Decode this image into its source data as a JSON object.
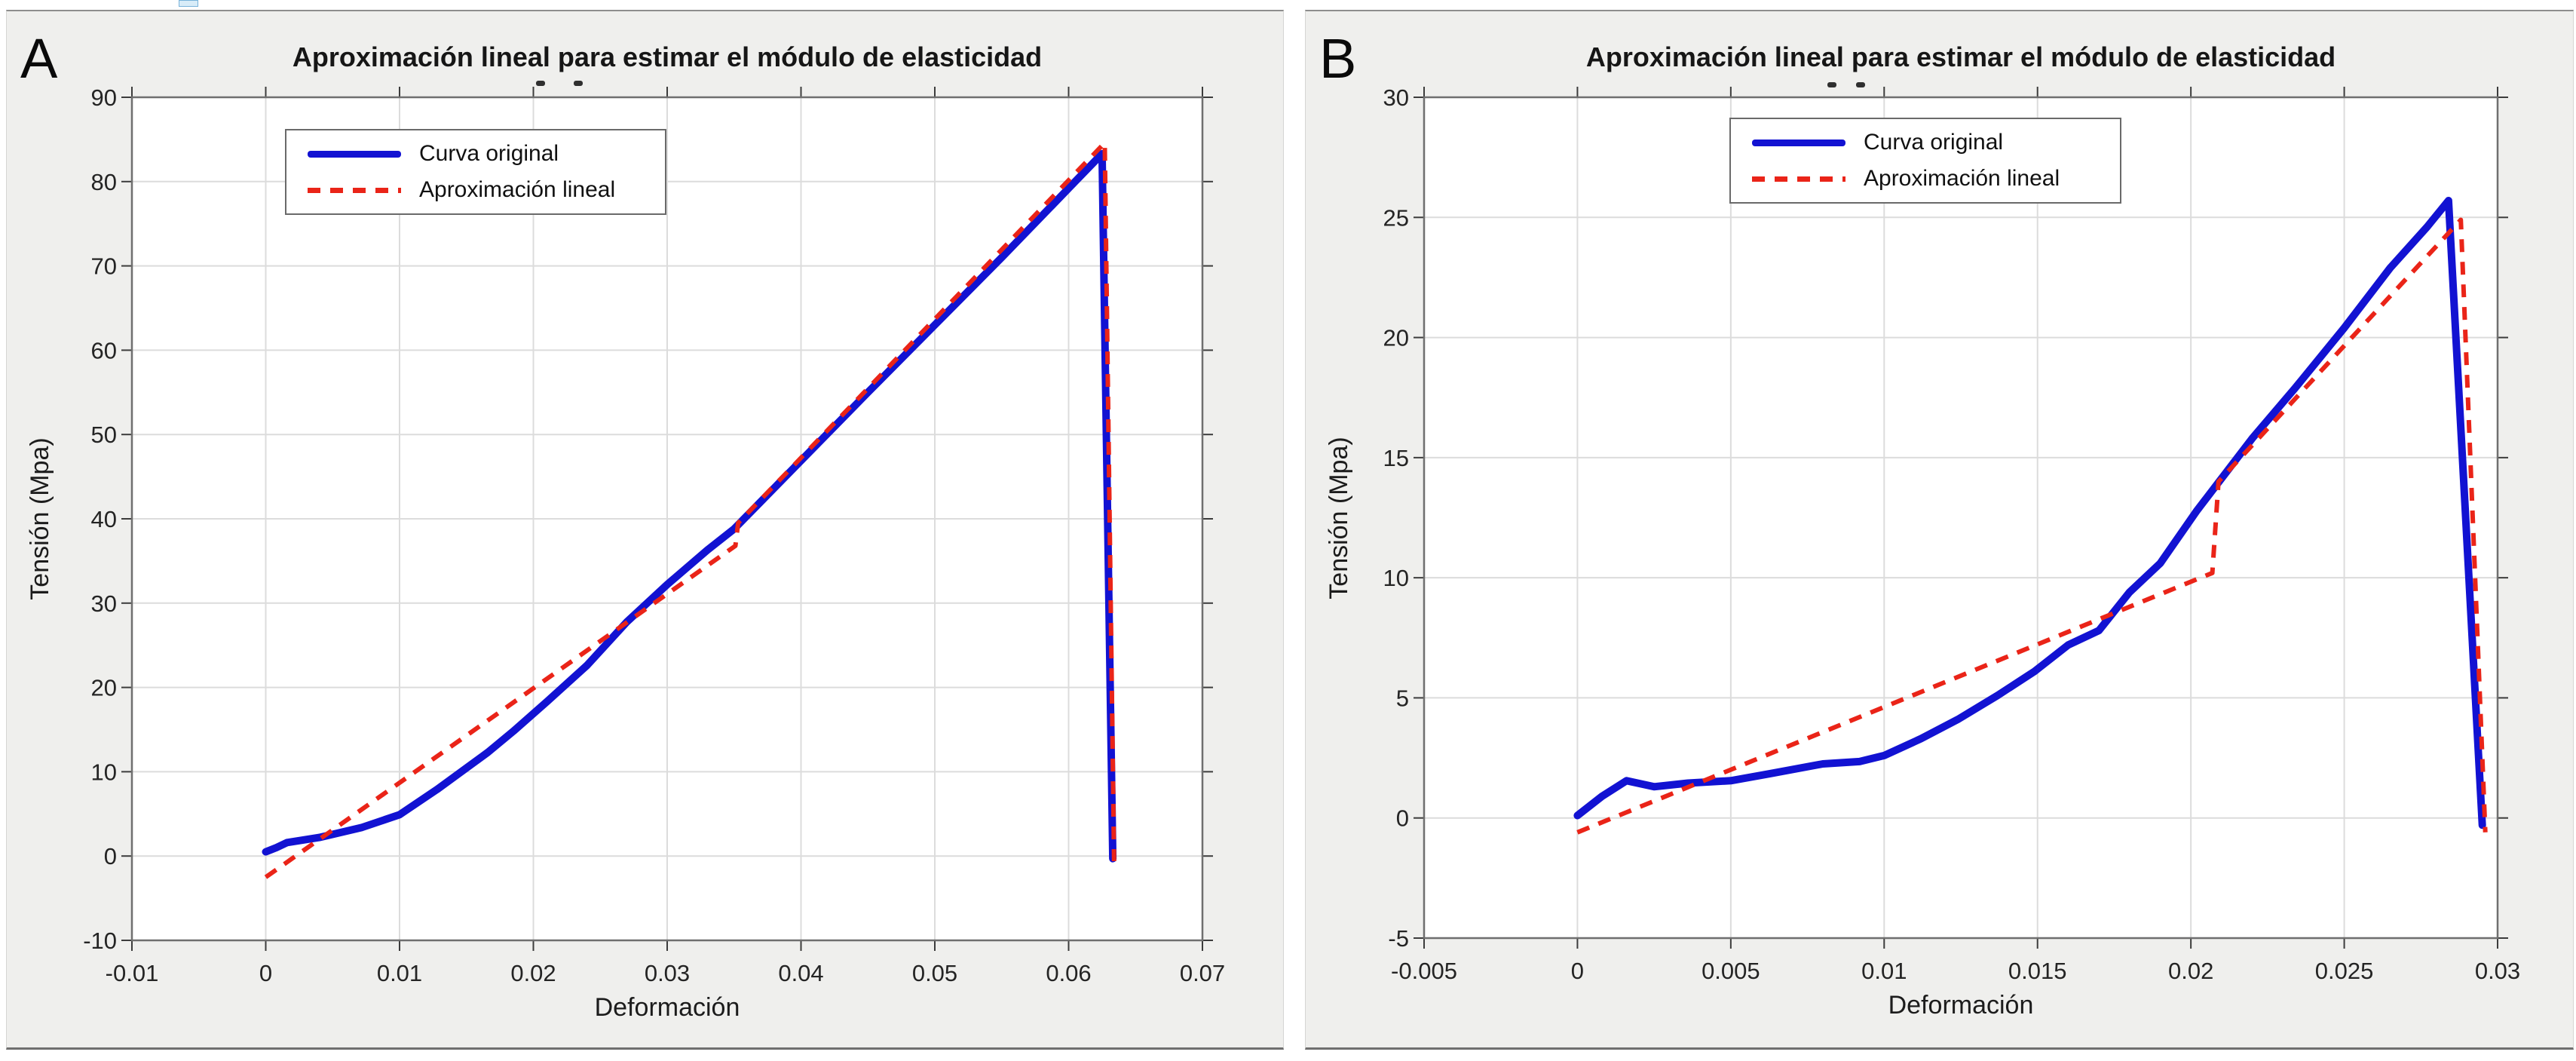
{
  "figure": {
    "panel_labels": [
      "A",
      "B"
    ],
    "blue_hex": "#1212d2",
    "red_hex": "#ea2418"
  },
  "chart_data": [
    {
      "panel_label": "A",
      "type": "line",
      "title": "Aproximación lineal para estimar el módulo de elasticidad",
      "xlabel": "Deformación",
      "ylabel": "Tensión (Mpa)",
      "xlim": [
        -0.01,
        0.07
      ],
      "ylim": [
        -10,
        90
      ],
      "grid": true,
      "legend": [
        "Curva original",
        "Aproximación lineal"
      ],
      "legend_position": "upper-left-inside",
      "xticks": {
        "values": [
          -0.01,
          0,
          0.01,
          0.02,
          0.03,
          0.04,
          0.05,
          0.06,
          0.07
        ],
        "labels": [
          "-0.01",
          "0",
          "0.01",
          "0.02",
          "0.03",
          "0.04",
          "0.05",
          "0.06",
          "0.07"
        ]
      },
      "yticks": {
        "values": [
          -10,
          0,
          10,
          20,
          30,
          40,
          50,
          60,
          70,
          80,
          90
        ],
        "labels": [
          "-10",
          "0",
          "10",
          "20",
          "30",
          "40",
          "50",
          "60",
          "70",
          "80",
          "90"
        ]
      },
      "series": [
        {
          "name": "Curva original",
          "color": "#1212d2",
          "style": "solid",
          "width": 10,
          "points": [
            [
              0,
              0.5
            ],
            [
              0.0008,
              1.0
            ],
            [
              0.0016,
              1.6
            ],
            [
              0.004,
              2.2
            ],
            [
              0.0072,
              3.4
            ],
            [
              0.01,
              4.9
            ],
            [
              0.0128,
              7.9
            ],
            [
              0.0166,
              12.3
            ],
            [
              0.0185,
              14.8
            ],
            [
              0.021,
              18.3
            ],
            [
              0.024,
              22.6
            ],
            [
              0.027,
              27.8
            ],
            [
              0.03,
              32.2
            ],
            [
              0.033,
              36.3
            ],
            [
              0.035,
              38.8
            ],
            [
              0.04,
              46.9
            ],
            [
              0.045,
              55.0
            ],
            [
              0.05,
              63.0
            ],
            [
              0.055,
              71.0
            ],
            [
              0.06,
              79.2
            ],
            [
              0.0625,
              83.3
            ],
            [
              0.0633,
              -0.3
            ]
          ]
        },
        {
          "name": "Aproximación lineal",
          "color": "#ea2418",
          "style": "dashed",
          "width": 6,
          "points": [
            [
              0,
              -2.5
            ],
            [
              0.0351,
              36.8
            ],
            [
              0.0353,
              39.5
            ],
            [
              0.0627,
              84.6
            ],
            [
              0.0634,
              -0.6
            ]
          ]
        }
      ]
    },
    {
      "panel_label": "B",
      "type": "line",
      "title": "Aproximación lineal para estimar el módulo de elasticidad",
      "xlabel": "Deformación",
      "ylabel": "Tensión (Mpa)",
      "xlim": [
        -0.005,
        0.03
      ],
      "ylim": [
        -5,
        30
      ],
      "grid": true,
      "legend": [
        "Curva original",
        "Aproximación lineal"
      ],
      "legend_position": "upper-middle-inside",
      "xticks": {
        "values": [
          -0.005,
          0,
          0.005,
          0.01,
          0.015,
          0.02,
          0.025,
          0.03
        ],
        "labels": [
          "-0.005",
          "0",
          "0.005",
          "0.01",
          "0.015",
          "0.02",
          "0.025",
          "0.03"
        ]
      },
      "yticks": {
        "values": [
          -5,
          0,
          5,
          10,
          15,
          20,
          25,
          30
        ],
        "labels": [
          "-5",
          "0",
          "5",
          "10",
          "15",
          "20",
          "25",
          "30"
        ]
      },
      "series": [
        {
          "name": "Curva original",
          "color": "#1212d2",
          "style": "solid",
          "width": 10,
          "points": [
            [
              0,
              0.1
            ],
            [
              0.0008,
              0.9
            ],
            [
              0.0016,
              1.55
            ],
            [
              0.0025,
              1.3
            ],
            [
              0.0036,
              1.45
            ],
            [
              0.005,
              1.55
            ],
            [
              0.0063,
              1.85
            ],
            [
              0.008,
              2.25
            ],
            [
              0.0092,
              2.35
            ],
            [
              0.01,
              2.6
            ],
            [
              0.0112,
              3.3
            ],
            [
              0.0124,
              4.1
            ],
            [
              0.0137,
              5.1
            ],
            [
              0.0149,
              6.1
            ],
            [
              0.016,
              7.2
            ],
            [
              0.017,
              7.8
            ],
            [
              0.018,
              9.4
            ],
            [
              0.019,
              10.6
            ],
            [
              0.0202,
              12.8
            ],
            [
              0.022,
              15.8
            ],
            [
              0.0234,
              17.9
            ],
            [
              0.025,
              20.4
            ],
            [
              0.0265,
              22.9
            ],
            [
              0.0277,
              24.6
            ],
            [
              0.0284,
              25.7
            ],
            [
              0.0295,
              -0.3
            ]
          ]
        },
        {
          "name": "Aproximación lineal",
          "color": "#ea2418",
          "style": "dashed",
          "width": 6,
          "points": [
            [
              0,
              -0.6
            ],
            [
              0.0207,
              10.2
            ],
            [
              0.0209,
              14.0
            ],
            [
              0.0288,
              24.9
            ],
            [
              0.0296,
              -0.6
            ]
          ]
        }
      ]
    }
  ]
}
